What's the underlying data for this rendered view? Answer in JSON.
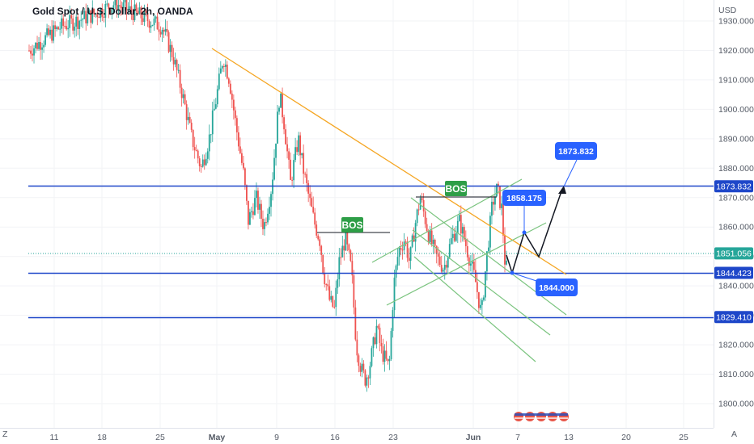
{
  "header": {
    "title": "Gold Spot / U.S. Dollar, 2h, OANDA",
    "currency": "USD"
  },
  "footer": {
    "left_button": "Z",
    "right_button": "A"
  },
  "colors": {
    "up": "#26a69a",
    "down": "#ef5350",
    "level": "#1e47c9",
    "trend": "#f5a623",
    "channel": "#7bc47f",
    "bos": "#2e9e47",
    "callout": "#2962ff",
    "price": "#26a69a",
    "projection": "#131722"
  },
  "chart_data": {
    "type": "candlestick",
    "symbol": "XAUUSD",
    "timeframe": "2h",
    "ylim": [
      1794,
      1936
    ],
    "y_ticks": [
      1800,
      1810,
      1820,
      1830,
      1840,
      1850,
      1860,
      1870,
      1880,
      1890,
      1900,
      1910,
      1920,
      1930
    ],
    "y_tick_labels": [
      "1800.000",
      "1810.000",
      "1820.000",
      "1830.000",
      "1840.000",
      "1850.000",
      "1860.000",
      "1870.000",
      "1880.000",
      "1890.000",
      "1900.000",
      "1910.000",
      "1920.000",
      "1930.000"
    ],
    "x_ticks": [
      "11",
      "18",
      "25",
      "May",
      "9",
      "16",
      "23",
      "Jun",
      "7",
      "13",
      "20",
      "25"
    ],
    "current_price": 1851.056,
    "current_price_label": "1851.056",
    "levels": [
      {
        "value": 1873.832,
        "label": "1873.832"
      },
      {
        "value": 1844.423,
        "label": "1844.423"
      },
      {
        "value": 1829.41,
        "label": "1829.410"
      }
    ],
    "annotations": {
      "bos": [
        "BOS",
        "BOS"
      ],
      "callouts": [
        "1873.832",
        "1858.175",
        "1844.000"
      ]
    },
    "series_path": [
      [
        0,
        1920
      ],
      [
        20,
        1928
      ],
      [
        40,
        1932
      ],
      [
        55,
        1936
      ],
      [
        70,
        1932
      ],
      [
        85,
        1928
      ],
      [
        92,
        1918
      ],
      [
        98,
        1905
      ],
      [
        104,
        1890
      ],
      [
        110,
        1880
      ],
      [
        115,
        1890
      ],
      [
        120,
        1905
      ],
      [
        124,
        1918
      ],
      [
        128,
        1910
      ],
      [
        132,
        1895
      ],
      [
        137,
        1878
      ],
      [
        140,
        1862
      ],
      [
        145,
        1870
      ],
      [
        150,
        1860
      ],
      [
        155,
        1874
      ],
      [
        160,
        1905
      ],
      [
        163,
        1895
      ],
      [
        167,
        1875
      ],
      [
        172,
        1890
      ],
      [
        175,
        1880
      ],
      [
        178,
        1872
      ],
      [
        182,
        1862
      ],
      [
        186,
        1855
      ],
      [
        188,
        1845
      ],
      [
        192,
        1835
      ],
      [
        195,
        1832
      ],
      [
        198,
        1848
      ],
      [
        202,
        1856
      ],
      [
        206,
        1845
      ],
      [
        209,
        1820
      ],
      [
        212,
        1812
      ],
      [
        215,
        1808
      ],
      [
        218,
        1814
      ],
      [
        222,
        1826
      ],
      [
        225,
        1818
      ],
      [
        230,
        1812
      ],
      [
        233,
        1840
      ],
      [
        236,
        1852
      ],
      [
        240,
        1856
      ],
      [
        243,
        1848
      ],
      [
        247,
        1862
      ],
      [
        250,
        1870
      ],
      [
        255,
        1858
      ],
      [
        260,
        1850
      ],
      [
        265,
        1846
      ],
      [
        270,
        1856
      ],
      [
        275,
        1862
      ],
      [
        280,
        1852
      ],
      [
        285,
        1842
      ],
      [
        289,
        1830
      ],
      [
        292,
        1848
      ],
      [
        296,
        1868
      ],
      [
        299,
        1873
      ],
      [
        302,
        1866
      ],
      [
        304,
        1848
      ],
      [
        306,
        1844
      ]
    ]
  }
}
